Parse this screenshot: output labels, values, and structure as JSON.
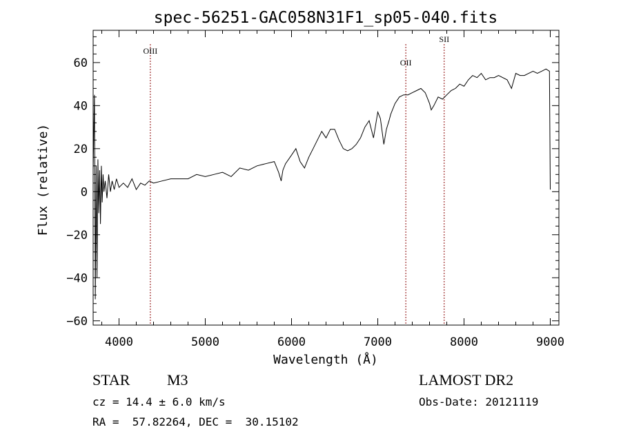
{
  "chart_data": {
    "type": "line",
    "title": "spec-56251-GAC058N31F1_sp05-040.fits",
    "xlabel": "Wavelength (Å)",
    "ylabel": "Flux (relative)",
    "xlim": [
      3700,
      9100
    ],
    "ylim": [
      -62,
      75
    ],
    "xticks": [
      4000,
      5000,
      6000,
      7000,
      8000,
      9000
    ],
    "yticks": [
      -60,
      -40,
      -20,
      0,
      20,
      40,
      60
    ],
    "grid": false,
    "line_color": "#000000",
    "marker_color": "#8b0000",
    "series": [
      {
        "x": [
          3700,
          3715,
          3725,
          3735,
          3745,
          3755,
          3765,
          3775,
          3785,
          3795,
          3805,
          3815,
          3825,
          3840,
          3860,
          3880,
          3900,
          3920,
          3945,
          3970,
          4000,
          4050,
          4100,
          4150,
          4200,
          4250,
          4300,
          4350,
          4400,
          4500,
          4600,
          4700,
          4800,
          4900,
          5000,
          5100,
          5200,
          5300,
          5400,
          5500,
          5600,
          5700,
          5800,
          5850,
          5880,
          5900,
          5930,
          6000,
          6050,
          6100,
          6150,
          6200,
          6250,
          6300,
          6350,
          6400,
          6450,
          6500,
          6550,
          6600,
          6650,
          6700,
          6750,
          6800,
          6850,
          6900,
          6950,
          7000,
          7030,
          7050,
          7070,
          7100,
          7130,
          7150,
          7200,
          7250,
          7300,
          7350,
          7400,
          7450,
          7500,
          7550,
          7600,
          7620,
          7650,
          7700,
          7750,
          7800,
          7850,
          7900,
          7950,
          8000,
          8050,
          8100,
          8150,
          8200,
          8250,
          8300,
          8350,
          8400,
          8500,
          8550,
          8600,
          8650,
          8700,
          8800,
          8850,
          8900,
          8950,
          8990,
          9000
        ],
        "y": [
          10,
          45,
          -50,
          12,
          -40,
          15,
          -10,
          10,
          -15,
          12,
          -5,
          8,
          0,
          5,
          -3,
          8,
          0,
          5,
          1,
          6,
          2,
          4,
          2,
          6,
          1,
          4,
          3,
          5,
          4,
          5,
          6,
          6,
          6,
          8,
          7,
          8,
          9,
          7,
          11,
          10,
          12,
          13,
          14,
          9,
          5,
          10,
          13,
          17,
          20,
          14,
          11,
          16,
          20,
          24,
          28,
          25,
          29,
          29,
          24,
          20,
          19,
          20,
          22,
          25,
          30,
          33,
          25,
          37,
          34,
          28,
          22,
          29,
          33,
          36,
          41,
          44,
          45,
          45,
          46,
          47,
          48,
          46,
          41,
          38,
          40,
          44,
          43,
          45,
          47,
          48,
          50,
          49,
          52,
          54,
          53,
          55,
          52,
          53,
          53,
          54,
          52,
          48,
          55,
          54,
          54,
          56,
          55,
          56,
          57,
          56,
          1
        ]
      }
    ],
    "line_markers": [
      {
        "label": "OIII",
        "x": 4363
      },
      {
        "label": "OII",
        "x": 7325
      },
      {
        "label": "SII",
        "x": 7770
      }
    ],
    "info": {
      "object_type": "STAR",
      "subclass": "M3",
      "cz": "cz = 14.4 ± 6.0 km/s",
      "coords": "RA =  57.82264, DEC =  30.15102",
      "survey": "LAMOST DR2",
      "obs_date": "Obs-Date: 20121119"
    }
  }
}
